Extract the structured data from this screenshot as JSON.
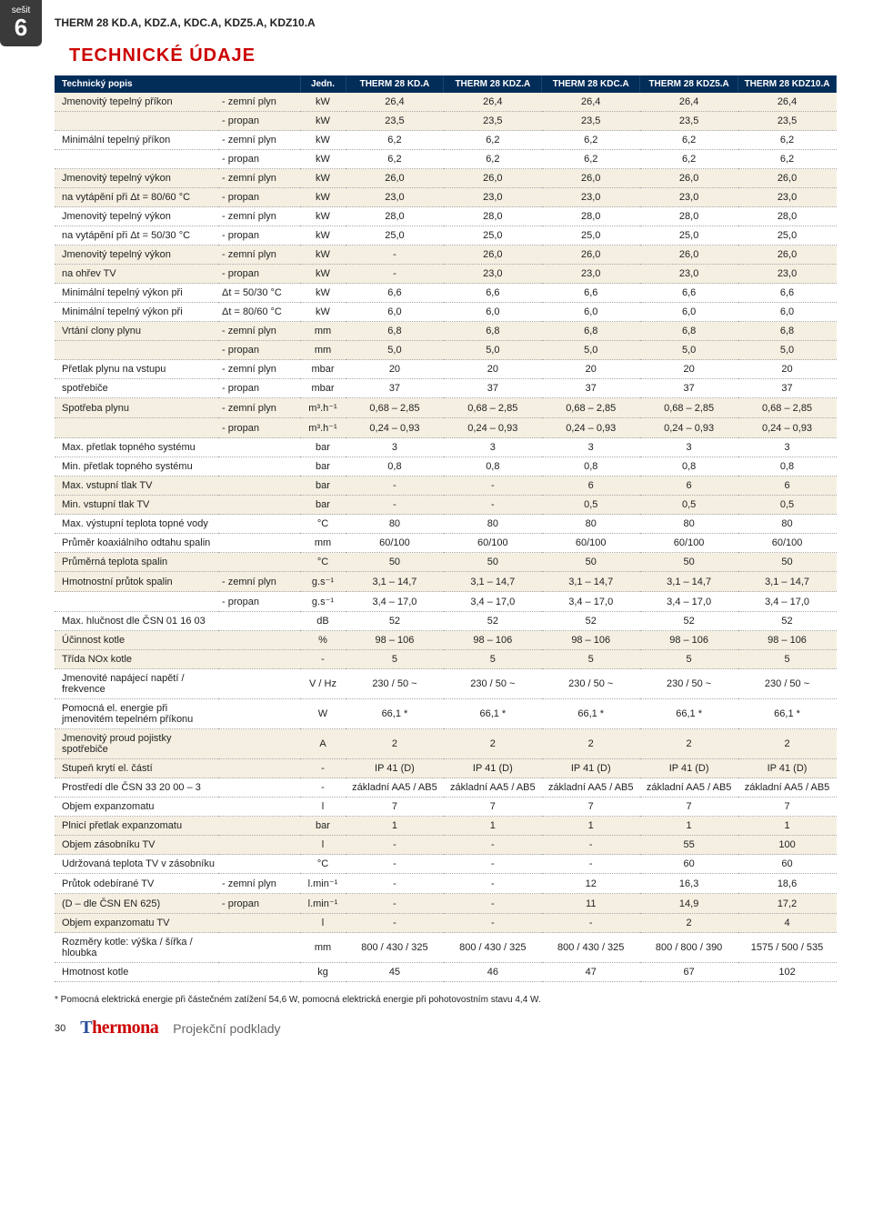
{
  "tab": {
    "small": "sešit",
    "big": "6"
  },
  "page_title": "THERM 28 KD.A, KDZ.A, KDC.A, KDZ5.A, KDZ10.A",
  "section_title": "TECHNICKÉ ÚDAJE",
  "table": {
    "header": {
      "label": "Technický popis",
      "unit": "Jedn.",
      "cols": [
        "THERM 28 KD.A",
        "THERM 28 KDZ.A",
        "THERM 28 KDC.A",
        "THERM 28 KDZ5.A",
        "THERM 28 KDZ10.A"
      ]
    },
    "stripe_rows": [
      0,
      1,
      4,
      5,
      8,
      9,
      12,
      13,
      16,
      17,
      20,
      21,
      24,
      25,
      28,
      29,
      32,
      33,
      36,
      37,
      40,
      41,
      44,
      45,
      48,
      49
    ],
    "rows": [
      {
        "label": "Jmenovitý tepelný příkon",
        "sub": "- zemní plyn",
        "unit": "kW",
        "vals": [
          "26,4",
          "26,4",
          "26,4",
          "26,4",
          "26,4"
        ]
      },
      {
        "label": "",
        "sub": "- propan",
        "unit": "kW",
        "vals": [
          "23,5",
          "23,5",
          "23,5",
          "23,5",
          "23,5"
        ]
      },
      {
        "label": "Minimální tepelný příkon",
        "sub": "- zemní plyn",
        "unit": "kW",
        "vals": [
          "6,2",
          "6,2",
          "6,2",
          "6,2",
          "6,2"
        ]
      },
      {
        "label": "",
        "sub": "- propan",
        "unit": "kW",
        "vals": [
          "6,2",
          "6,2",
          "6,2",
          "6,2",
          "6,2"
        ]
      },
      {
        "label": "Jmenovitý tepelný výkon",
        "sub": "- zemní plyn",
        "unit": "kW",
        "vals": [
          "26,0",
          "26,0",
          "26,0",
          "26,0",
          "26,0"
        ]
      },
      {
        "label": "na vytápění při Δt = 80/60 °C",
        "sub": "- propan",
        "unit": "kW",
        "vals": [
          "23,0",
          "23,0",
          "23,0",
          "23,0",
          "23,0"
        ]
      },
      {
        "label": "Jmenovitý tepelný výkon",
        "sub": "- zemní plyn",
        "unit": "kW",
        "vals": [
          "28,0",
          "28,0",
          "28,0",
          "28,0",
          "28,0"
        ]
      },
      {
        "label": "na vytápění při Δt = 50/30 °C",
        "sub": "- propan",
        "unit": "kW",
        "vals": [
          "25,0",
          "25,0",
          "25,0",
          "25,0",
          "25,0"
        ]
      },
      {
        "label": "Jmenovitý tepelný výkon",
        "sub": "- zemní plyn",
        "unit": "kW",
        "vals": [
          "-",
          "26,0",
          "26,0",
          "26,0",
          "26,0"
        ]
      },
      {
        "label": "na ohřev TV",
        "sub": "- propan",
        "unit": "kW",
        "vals": [
          "-",
          "23,0",
          "23,0",
          "23,0",
          "23,0"
        ]
      },
      {
        "label": "Minimální tepelný výkon při",
        "sub": "Δt = 50/30 °C",
        "unit": "kW",
        "vals": [
          "6,6",
          "6,6",
          "6,6",
          "6,6",
          "6,6"
        ]
      },
      {
        "label": "Minimální tepelný výkon při",
        "sub": "Δt = 80/60 °C",
        "unit": "kW",
        "vals": [
          "6,0",
          "6,0",
          "6,0",
          "6,0",
          "6,0"
        ]
      },
      {
        "label": "Vrtání clony plynu",
        "sub": "- zemní plyn",
        "unit": "mm",
        "vals": [
          "6,8",
          "6,8",
          "6,8",
          "6,8",
          "6,8"
        ]
      },
      {
        "label": "",
        "sub": "- propan",
        "unit": "mm",
        "vals": [
          "5,0",
          "5,0",
          "5,0",
          "5,0",
          "5,0"
        ]
      },
      {
        "label": "Přetlak plynu na vstupu",
        "sub": "- zemní plyn",
        "unit": "mbar",
        "vals": [
          "20",
          "20",
          "20",
          "20",
          "20"
        ]
      },
      {
        "label": "spotřebiče",
        "sub": "- propan",
        "unit": "mbar",
        "vals": [
          "37",
          "37",
          "37",
          "37",
          "37"
        ]
      },
      {
        "label": "Spotřeba plynu",
        "sub": "- zemní plyn",
        "unit": "m³.h⁻¹",
        "vals": [
          "0,68 – 2,85",
          "0,68 – 2,85",
          "0,68 – 2,85",
          "0,68 – 2,85",
          "0,68 – 2,85"
        ]
      },
      {
        "label": "",
        "sub": "- propan",
        "unit": "m³.h⁻¹",
        "vals": [
          "0,24 – 0,93",
          "0,24 – 0,93",
          "0,24 – 0,93",
          "0,24 – 0,93",
          "0,24 – 0,93"
        ]
      },
      {
        "label": "Max. přetlak topného systému",
        "sub": "",
        "unit": "bar",
        "vals": [
          "3",
          "3",
          "3",
          "3",
          "3"
        ]
      },
      {
        "label": "Min. přetlak topného systému",
        "sub": "",
        "unit": "bar",
        "vals": [
          "0,8",
          "0,8",
          "0,8",
          "0,8",
          "0,8"
        ]
      },
      {
        "label": "Max. vstupní tlak TV",
        "sub": "",
        "unit": "bar",
        "vals": [
          "-",
          "-",
          "6",
          "6",
          "6"
        ]
      },
      {
        "label": "Min. vstupní tlak TV",
        "sub": "",
        "unit": "bar",
        "vals": [
          "-",
          "-",
          "0,5",
          "0,5",
          "0,5"
        ]
      },
      {
        "label": "Max. výstupní teplota topné vody",
        "sub": "",
        "unit": "°C",
        "vals": [
          "80",
          "80",
          "80",
          "80",
          "80"
        ]
      },
      {
        "label": "Průměr koaxiálního odtahu spalin",
        "sub": "",
        "unit": "mm",
        "vals": [
          "60/100",
          "60/100",
          "60/100",
          "60/100",
          "60/100"
        ]
      },
      {
        "label": "Průměrná teplota spalin",
        "sub": "",
        "unit": "°C",
        "vals": [
          "50",
          "50",
          "50",
          "50",
          "50"
        ]
      },
      {
        "label": "Hmotnostní průtok spalin",
        "sub": "- zemní plyn",
        "unit": "g.s⁻¹",
        "vals": [
          "3,1 – 14,7",
          "3,1 – 14,7",
          "3,1 – 14,7",
          "3,1 – 14,7",
          "3,1 – 14,7"
        ]
      },
      {
        "label": "",
        "sub": "- propan",
        "unit": "g.s⁻¹",
        "vals": [
          "3,4 – 17,0",
          "3,4 – 17,0",
          "3,4 – 17,0",
          "3,4 – 17,0",
          "3,4 – 17,0"
        ]
      },
      {
        "label": "Max. hlučnost dle ČSN 01 16 03",
        "sub": "",
        "unit": "dB",
        "vals": [
          "52",
          "52",
          "52",
          "52",
          "52"
        ]
      },
      {
        "label": "Účinnost kotle",
        "sub": "",
        "unit": "%",
        "vals": [
          "98 – 106",
          "98 – 106",
          "98 – 106",
          "98 – 106",
          "98 – 106"
        ]
      },
      {
        "label": "Třída NOx kotle",
        "sub": "",
        "unit": "-",
        "vals": [
          "5",
          "5",
          "5",
          "5",
          "5"
        ]
      },
      {
        "label": "Jmenovité napájecí napětí / frekvence",
        "sub": "",
        "unit": "V / Hz",
        "vals": [
          "230 / 50 ~",
          "230 / 50 ~",
          "230 / 50 ~",
          "230 / 50 ~",
          "230 / 50 ~"
        ]
      },
      {
        "label": "Pomocná el. energie při jmenovitém tepelném příkonu",
        "sub": "",
        "unit": "W",
        "vals": [
          "66,1 *",
          "66,1 *",
          "66,1 *",
          "66,1 *",
          "66,1 *"
        ]
      },
      {
        "label": "Jmenovitý proud pojistky spotřebiče",
        "sub": "",
        "unit": "A",
        "vals": [
          "2",
          "2",
          "2",
          "2",
          "2"
        ]
      },
      {
        "label": "Stupeň krytí el. částí",
        "sub": "",
        "unit": "-",
        "vals": [
          "IP 41 (D)",
          "IP 41 (D)",
          "IP 41 (D)",
          "IP 41 (D)",
          "IP 41 (D)"
        ]
      },
      {
        "label": "Prostředí dle ČSN 33 20 00 – 3",
        "sub": "",
        "unit": "-",
        "vals": [
          "základní AA5 / AB5",
          "základní AA5 / AB5",
          "základní AA5 / AB5",
          "základní AA5 / AB5",
          "základní AA5 / AB5"
        ]
      },
      {
        "label": "Objem expanzomatu",
        "sub": "",
        "unit": "l",
        "vals": [
          "7",
          "7",
          "7",
          "7",
          "7"
        ]
      },
      {
        "label": "Plnicí přetlak expanzomatu",
        "sub": "",
        "unit": "bar",
        "vals": [
          "1",
          "1",
          "1",
          "1",
          "1"
        ]
      },
      {
        "label": "Objem zásobníku TV",
        "sub": "",
        "unit": "l",
        "vals": [
          "-",
          "-",
          "-",
          "55",
          "100"
        ]
      },
      {
        "label": "Udržovaná teplota TV v zásobníku",
        "sub": "",
        "unit": "°C",
        "vals": [
          "-",
          "-",
          "-",
          "60",
          "60"
        ]
      },
      {
        "label": "Průtok odebírané TV",
        "sub": "- zemní plyn",
        "unit": "l.min⁻¹",
        "vals": [
          "-",
          "-",
          "12",
          "16,3",
          "18,6"
        ]
      },
      {
        "label": "(D – dle ČSN EN 625)",
        "sub": "- propan",
        "unit": "l.min⁻¹",
        "vals": [
          "-",
          "-",
          "11",
          "14,9",
          "17,2"
        ]
      },
      {
        "label": "Objem expanzomatu TV",
        "sub": "",
        "unit": "l",
        "vals": [
          "-",
          "-",
          "-",
          "2",
          "4"
        ]
      },
      {
        "label": "Rozměry kotle:  výška / šířka / hloubka",
        "sub": "",
        "unit": "mm",
        "vals": [
          "800 / 430 / 325",
          "800 / 430 / 325",
          "800 / 430 / 325",
          "800 / 800 / 390",
          "1575 / 500 / 535"
        ]
      },
      {
        "label": "Hmotnost kotle",
        "sub": "",
        "unit": "kg",
        "vals": [
          "45",
          "46",
          "47",
          "67",
          "102"
        ]
      }
    ]
  },
  "footnote": "* Pomocná elektrická energie při částečném zatížení 54,6 W, pomocná elektrická energie při pohotovostním stavu 4,4 W.",
  "footer": {
    "pagenum": "30",
    "logo_t1": "T",
    "logo_rest": "hermona",
    "proj": "Projekční podklady"
  }
}
